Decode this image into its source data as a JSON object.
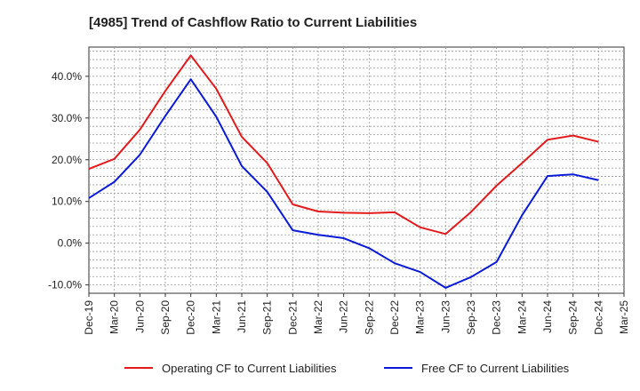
{
  "chart_data": {
    "type": "line",
    "title": "[4985]  Trend of Cashflow Ratio to Current Liabilities",
    "xlabel": "",
    "ylabel": "",
    "x_ticks": [
      "Dec-19",
      "Mar-20",
      "Jun-20",
      "Sep-20",
      "Dec-20",
      "Mar-21",
      "Jun-21",
      "Sep-21",
      "Dec-21",
      "Mar-22",
      "Jun-22",
      "Sep-22",
      "Dec-22",
      "Mar-23",
      "Jun-23",
      "Sep-23",
      "Dec-23",
      "Mar-24",
      "Jun-24",
      "Sep-24",
      "Dec-24",
      "Mar-25"
    ],
    "y_ticks": [
      "-10.0%",
      "0.0%",
      "10.0%",
      "20.0%",
      "30.0%",
      "40.0%"
    ],
    "y_tick_values": [
      -10,
      0,
      10,
      20,
      30,
      40
    ],
    "ylim": [
      -12,
      47
    ],
    "grid": true,
    "legend_position": "bottom",
    "series": [
      {
        "name": "Operating CF to Current Liabilities",
        "color": "#e31a1c",
        "x": [
          "Dec-19",
          "Mar-20",
          "Jun-20",
          "Sep-20",
          "Dec-20",
          "Mar-21",
          "Jun-21",
          "Sep-21",
          "Dec-21",
          "Mar-22",
          "Jun-22",
          "Sep-22",
          "Dec-22",
          "Mar-23",
          "Jun-23",
          "Sep-23",
          "Dec-23",
          "Mar-24",
          "Jun-24",
          "Sep-24",
          "Dec-24"
        ],
        "values": [
          17.8,
          20.2,
          27.2,
          36.5,
          45.0,
          37.0,
          25.5,
          19.2,
          9.3,
          7.6,
          7.3,
          7.2,
          7.4,
          3.8,
          2.2,
          7.5,
          13.8,
          19.2,
          24.8,
          25.8,
          24.3
        ]
      },
      {
        "name": "Free CF to Current Liabilities",
        "color": "#0a1ad6",
        "x": [
          "Dec-19",
          "Mar-20",
          "Jun-20",
          "Sep-20",
          "Dec-20",
          "Mar-21",
          "Jun-21",
          "Sep-21",
          "Dec-21",
          "Mar-22",
          "Jun-22",
          "Sep-22",
          "Dec-22",
          "Mar-23",
          "Jun-23",
          "Sep-23",
          "Dec-23",
          "Mar-24",
          "Jun-24",
          "Sep-24",
          "Dec-24"
        ],
        "values": [
          10.8,
          14.7,
          21.2,
          30.5,
          39.3,
          30.3,
          18.5,
          12.3,
          3.1,
          2.0,
          1.2,
          -1.2,
          -4.8,
          -6.9,
          -10.7,
          -8.1,
          -4.5,
          6.7,
          16.1,
          16.5,
          15.1
        ]
      }
    ]
  }
}
